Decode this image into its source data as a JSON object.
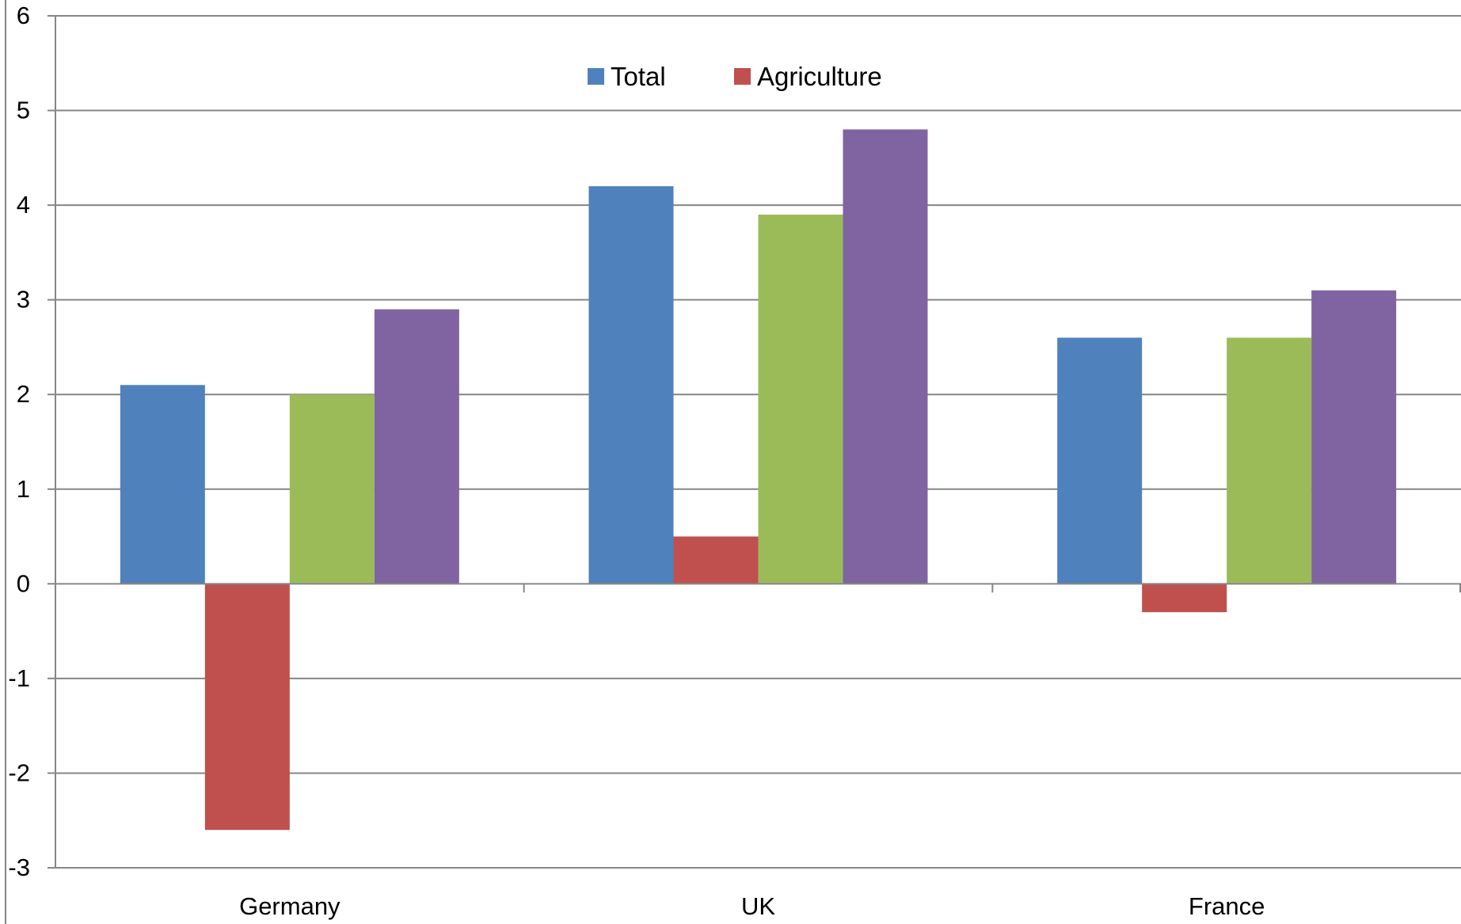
{
  "chart_data": {
    "type": "bar",
    "categories": [
      "Germany",
      "UK",
      "France"
    ],
    "series": [
      {
        "name": "Total",
        "color": "#4F81BD",
        "values": [
          2.1,
          4.2,
          2.6
        ]
      },
      {
        "name": "Agriculture",
        "color": "#C0504D",
        "values": [
          -2.6,
          0.5,
          -0.3
        ]
      },
      {
        "color": "#9BBB59",
        "values": [
          2.0,
          3.9,
          2.6
        ]
      },
      {
        "color": "#8064A2",
        "values": [
          2.9,
          4.8,
          3.1
        ]
      }
    ],
    "ylim": [
      -3,
      6
    ],
    "yticks": [
      -3,
      -2,
      -1,
      0,
      1,
      2,
      3,
      4,
      5,
      6
    ],
    "grid": true,
    "legend_position": "top-center",
    "title": "",
    "xlabel": "",
    "ylabel": ""
  }
}
